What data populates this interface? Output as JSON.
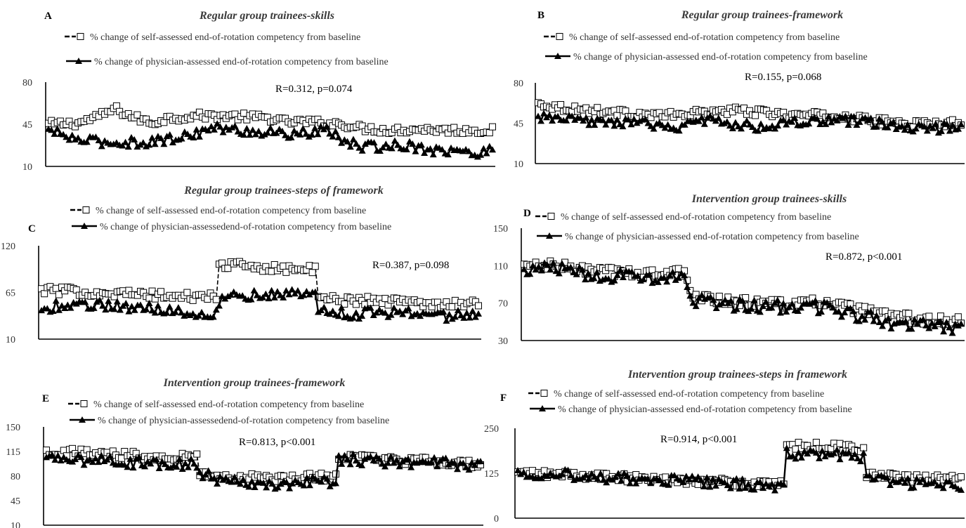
{
  "legend": {
    "self": "% change of self-assessed end-of-rotation competency from baseline",
    "physician": "% change of physician-assessed end-of-rotation competency from baseline",
    "physician_nospace": "% change of physician-assessedend-of-rotation competency from baseline"
  },
  "chart_data": [
    {
      "type": "line",
      "letter": "A",
      "title": "Regular group trainees-skills",
      "stat": "R=0.312, p=0.074",
      "ylim": [
        10,
        80
      ],
      "yticks": [
        "10",
        "45",
        "80"
      ],
      "xlabel": "",
      "ylabel": "",
      "series": [
        {
          "name": "% change of self-assessed end-of-rotation competency from baseline",
          "marker": "open-square",
          "dashed": true,
          "anchors": [
            [
              0,
              45
            ],
            [
              20,
              46
            ],
            [
              35,
              52
            ],
            [
              45,
              58
            ],
            [
              55,
              52
            ],
            [
              70,
              46
            ],
            [
              80,
              50
            ],
            [
              100,
              52
            ],
            [
              120,
              52
            ],
            [
              150,
              50
            ],
            [
              160,
              47
            ],
            [
              175,
              47
            ],
            [
              200,
              45
            ],
            [
              210,
              42
            ],
            [
              230,
              40
            ],
            [
              250,
              41
            ],
            [
              275,
              40
            ],
            [
              300,
              40
            ]
          ]
        },
        {
          "name": "% change of physician-assessed end-of-rotation competency from baseline",
          "marker": "filled-triangle",
          "dashed": false,
          "anchors": [
            [
              0,
              40
            ],
            [
              20,
              32
            ],
            [
              40,
              30
            ],
            [
              60,
              30
            ],
            [
              80,
              32
            ],
            [
              100,
              38
            ],
            [
              110,
              42
            ],
            [
              130,
              40
            ],
            [
              150,
              38
            ],
            [
              170,
              37
            ],
            [
              190,
              40
            ],
            [
              200,
              30
            ],
            [
              215,
              26
            ],
            [
              240,
              28
            ],
            [
              260,
              24
            ],
            [
              280,
              22
            ],
            [
              290,
              20
            ],
            [
              300,
              25
            ]
          ]
        }
      ]
    },
    {
      "type": "line",
      "letter": "B",
      "title": "Regular group trainees-framework",
      "stat": "R=0.155, p=0.068",
      "ylim": [
        10,
        80
      ],
      "yticks": [
        "10",
        "45",
        "80"
      ],
      "xlabel": "",
      "ylabel": "",
      "series": [
        {
          "name": "% change of self-assessed end-of-rotation competency from baseline",
          "marker": "open-square",
          "dashed": true,
          "anchors": [
            [
              0,
              62
            ],
            [
              20,
              58
            ],
            [
              40,
              56
            ],
            [
              60,
              54
            ],
            [
              80,
              52
            ],
            [
              100,
              52
            ],
            [
              120,
              55
            ],
            [
              140,
              56
            ],
            [
              160,
              54
            ],
            [
              180,
              52
            ],
            [
              200,
              52
            ],
            [
              220,
              50
            ],
            [
              240,
              47
            ],
            [
              260,
              45
            ],
            [
              280,
              44
            ],
            [
              300,
              46
            ]
          ]
        },
        {
          "name": "% change of physician-assessed end-of-rotation competency from baseline",
          "marker": "filled-triangle",
          "dashed": false,
          "anchors": [
            [
              0,
              50
            ],
            [
              20,
              48
            ],
            [
              40,
              46
            ],
            [
              60,
              46
            ],
            [
              80,
              44
            ],
            [
              100,
              42
            ],
            [
              120,
              48
            ],
            [
              140,
              44
            ],
            [
              160,
              42
            ],
            [
              180,
              45
            ],
            [
              200,
              47
            ],
            [
              220,
              47
            ],
            [
              240,
              45
            ],
            [
              260,
              42
            ],
            [
              280,
              40
            ],
            [
              300,
              44
            ]
          ]
        }
      ]
    },
    {
      "type": "line",
      "letter": "C",
      "title": "Regular group trainees-steps of framework",
      "stat": "R=0.387, p=0.098",
      "ylim": [
        10,
        120
      ],
      "yticks": [
        "10",
        "65",
        "120"
      ],
      "xlabel": "",
      "ylabel": "",
      "series": [
        {
          "name": "% change of self-assessed end-of-rotation competency from baseline",
          "marker": "open-square",
          "dashed": true,
          "anchors": [
            [
              0,
              68
            ],
            [
              25,
              66
            ],
            [
              50,
              64
            ],
            [
              75,
              62
            ],
            [
              100,
              60
            ],
            [
              120,
              60
            ],
            [
              121,
              98
            ],
            [
              140,
              96
            ],
            [
              160,
              94
            ],
            [
              180,
              92
            ],
            [
              189,
              92
            ],
            [
              190,
              58
            ],
            [
              210,
              56
            ],
            [
              240,
              55
            ],
            [
              270,
              52
            ],
            [
              300,
              52
            ]
          ]
        },
        {
          "name": "% change of physician-assessedend-of-rotation competency from baseline",
          "marker": "filled-triangle",
          "dashed": false,
          "anchors": [
            [
              0,
              42
            ],
            [
              15,
              52
            ],
            [
              40,
              50
            ],
            [
              70,
              48
            ],
            [
              90,
              44
            ],
            [
              110,
              40
            ],
            [
              120,
              42
            ],
            [
              125,
              62
            ],
            [
              150,
              62
            ],
            [
              175,
              64
            ],
            [
              189,
              62
            ],
            [
              190,
              44
            ],
            [
              215,
              40
            ],
            [
              240,
              42
            ],
            [
              270,
              38
            ],
            [
              300,
              38
            ]
          ]
        }
      ]
    },
    {
      "type": "line",
      "letter": "D",
      "title": "Intervention group trainees-skills",
      "stat": "R=0.872, p<0.001",
      "ylim": [
        30,
        150
      ],
      "yticks": [
        "30",
        "70",
        "110",
        "150"
      ],
      "xlabel": "",
      "ylabel": "",
      "series": [
        {
          "name": "% change of self-assessed end-of-rotation competency from baseline",
          "marker": "open-square",
          "dashed": true,
          "anchors": [
            [
              0,
              110
            ],
            [
              20,
              110
            ],
            [
              50,
              104
            ],
            [
              80,
              102
            ],
            [
              110,
              102
            ],
            [
              114,
              80
            ],
            [
              140,
              72
            ],
            [
              170,
              70
            ],
            [
              210,
              70
            ],
            [
              225,
              64
            ],
            [
              250,
              56
            ],
            [
              275,
              52
            ],
            [
              300,
              50
            ]
          ]
        },
        {
          "name": "% change of physician-assessed end-of-rotation competency from baseline",
          "marker": "filled-triangle",
          "dashed": false,
          "anchors": [
            [
              0,
              104
            ],
            [
              20,
              108
            ],
            [
              50,
              100
            ],
            [
              80,
              98
            ],
            [
              110,
              98
            ],
            [
              114,
              74
            ],
            [
              140,
              68
            ],
            [
              170,
              66
            ],
            [
              210,
              66
            ],
            [
              225,
              58
            ],
            [
              250,
              50
            ],
            [
              275,
              48
            ],
            [
              300,
              44
            ]
          ]
        }
      ]
    },
    {
      "type": "line",
      "letter": "E",
      "title": "Intervention group trainees-framework",
      "stat": "R=0.813, p<0.001",
      "ylim": [
        10,
        150
      ],
      "yticks": [
        "10",
        "45",
        "80",
        "115",
        "150"
      ],
      "xlabel": "",
      "ylabel": "",
      "series": [
        {
          "name": "% change of self-assessed end-of-rotation competency from baseline",
          "marker": "open-square",
          "dashed": true,
          "anchors": [
            [
              0,
              115
            ],
            [
              40,
              112
            ],
            [
              80,
              108
            ],
            [
              105,
              108
            ],
            [
              106,
              84
            ],
            [
              130,
              78
            ],
            [
              160,
              76
            ],
            [
              200,
              80
            ],
            [
              201,
              108
            ],
            [
              240,
              102
            ],
            [
              280,
              100
            ],
            [
              300,
              96
            ]
          ]
        },
        {
          "name": "% change of physician-assessedend-of-rotation competency from baseline",
          "marker": "filled-triangle",
          "dashed": false,
          "anchors": [
            [
              0,
              104
            ],
            [
              40,
              102
            ],
            [
              80,
              98
            ],
            [
              105,
              98
            ],
            [
              106,
              82
            ],
            [
              130,
              72
            ],
            [
              160,
              70
            ],
            [
              200,
              72
            ],
            [
              201,
              104
            ],
            [
              240,
              100
            ],
            [
              280,
              98
            ],
            [
              300,
              94
            ]
          ]
        }
      ]
    },
    {
      "type": "line",
      "letter": "F",
      "title": "Intervention group trainees-steps in framework",
      "stat": "R=0.914, p<0.001",
      "ylim": [
        0,
        250
      ],
      "yticks": [
        "0",
        "125",
        "250"
      ],
      "xlabel": "",
      "ylabel": "",
      "series": [
        {
          "name": "% change of self-assessed end-of-rotation competency from baseline",
          "marker": "open-square",
          "dashed": true,
          "anchors": [
            [
              0,
              125
            ],
            [
              40,
              120
            ],
            [
              80,
              110
            ],
            [
              120,
              105
            ],
            [
              160,
              95
            ],
            [
              180,
              92
            ],
            [
              181,
              200
            ],
            [
              210,
              200
            ],
            [
              235,
              195
            ],
            [
              236,
              120
            ],
            [
              270,
              110
            ],
            [
              300,
              112
            ]
          ]
        },
        {
          "name": "% change of physician-assessed end-of-rotation competency from baseline",
          "marker": "filled-triangle",
          "dashed": false,
          "anchors": [
            [
              0,
              128
            ],
            [
              40,
              120
            ],
            [
              80,
              108
            ],
            [
              120,
              102
            ],
            [
              160,
              92
            ],
            [
              180,
              90
            ],
            [
              181,
              180
            ],
            [
              210,
              178
            ],
            [
              235,
              170
            ],
            [
              236,
              108
            ],
            [
              270,
              95
            ],
            [
              300,
              92
            ]
          ]
        }
      ]
    }
  ]
}
